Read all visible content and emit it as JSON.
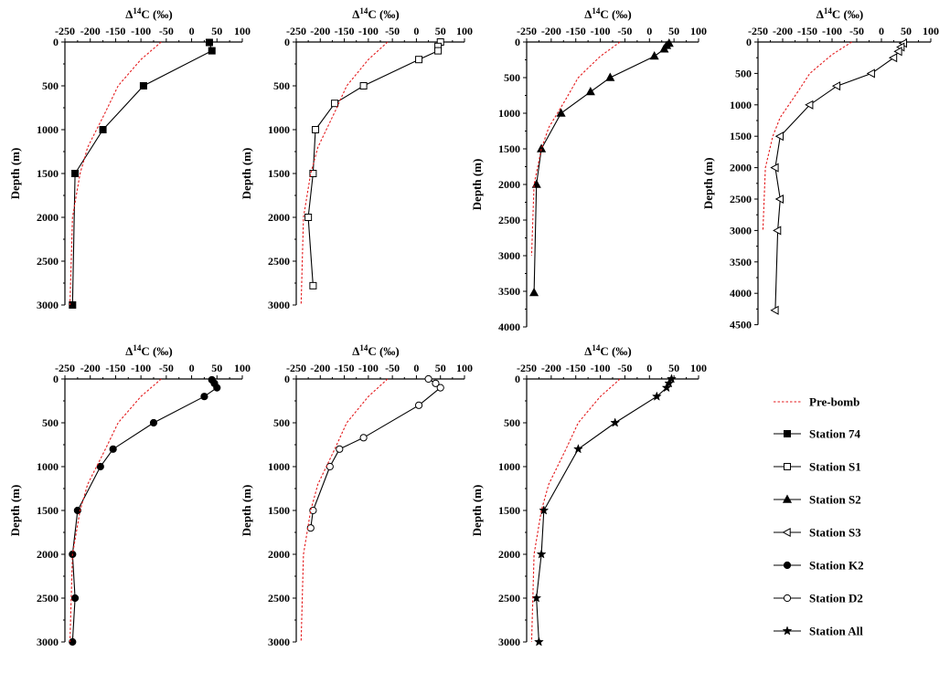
{
  "figure": {
    "legend": {
      "prebomb": "Pre-bomb",
      "items": [
        {
          "key": "74",
          "label": "Station 74",
          "marker": "square-filled"
        },
        {
          "key": "S1",
          "label": "Station S1",
          "marker": "square-open"
        },
        {
          "key": "S2",
          "label": "Station S2",
          "marker": "triangle-up-filled"
        },
        {
          "key": "S3",
          "label": "Station S3",
          "marker": "triangle-left-open"
        },
        {
          "key": "K2",
          "label": "Station K2",
          "marker": "circle-filled"
        },
        {
          "key": "D2",
          "label": "Station D2",
          "marker": "circle-open"
        },
        {
          "key": "All",
          "label": "Station All",
          "marker": "star-filled"
        }
      ]
    },
    "colors": {
      "prebomb": "#e41a1c",
      "data": "#000000"
    }
  },
  "chart_data": [
    {
      "type": "line",
      "station": "Station 74",
      "marker": "square-filled",
      "xlabel": "Δ14C (‰)",
      "ylabel": "Depth (m)",
      "xlim": [
        -250,
        100
      ],
      "ylim": [
        0,
        3000
      ],
      "xticks": [
        "-250",
        "-200",
        "-150",
        "-100",
        "-50",
        "0",
        "50",
        "100"
      ],
      "yticks": [
        "0",
        "500",
        "1000",
        "1500",
        "2000",
        "2500",
        "3000"
      ],
      "series": [
        {
          "name": "Station 74",
          "points": [
            [
              35,
              5
            ],
            [
              40,
              100
            ],
            [
              -95,
              500
            ],
            [
              -175,
              1000
            ],
            [
              -230,
              1500
            ],
            [
              -235,
              3000
            ]
          ]
        },
        {
          "name": "Pre-bomb",
          "points": [
            [
              -60,
              0
            ],
            [
              -100,
              200
            ],
            [
              -145,
              500
            ],
            [
              -170,
              800
            ],
            [
              -205,
              1200
            ],
            [
              -220,
              1500
            ],
            [
              -235,
              2000
            ],
            [
              -240,
              3000
            ]
          ]
        }
      ]
    },
    {
      "type": "line",
      "station": "Station S1",
      "marker": "square-open",
      "xlabel": "Δ14C (‰)",
      "ylabel": "Depth (m)",
      "xlim": [
        -250,
        100
      ],
      "ylim": [
        0,
        3000
      ],
      "xticks": [
        "-250",
        "-200",
        "-150",
        "-100",
        "-50",
        "0",
        "50",
        "100"
      ],
      "yticks": [
        "0",
        "500",
        "1000",
        "1500",
        "2000",
        "2500",
        "3000"
      ],
      "series": [
        {
          "name": "Station S1",
          "points": [
            [
              50,
              0
            ],
            [
              45,
              50
            ],
            [
              45,
              100
            ],
            [
              5,
              200
            ],
            [
              -110,
              500
            ],
            [
              -170,
              700
            ],
            [
              -210,
              1000
            ],
            [
              -215,
              1500
            ],
            [
              -225,
              2000
            ],
            [
              -215,
              2780
            ]
          ]
        },
        {
          "name": "Pre-bomb",
          "points": [
            [
              -60,
              0
            ],
            [
              -100,
              200
            ],
            [
              -145,
              500
            ],
            [
              -170,
              800
            ],
            [
              -205,
              1200
            ],
            [
              -220,
              1500
            ],
            [
              -235,
              2000
            ],
            [
              -240,
              3000
            ]
          ]
        }
      ]
    },
    {
      "type": "line",
      "station": "Station S2",
      "marker": "triangle-up-filled",
      "xlabel": "Δ14C (‰)",
      "ylabel": "Depth (m)",
      "xlim": [
        -250,
        100
      ],
      "ylim": [
        0,
        4000
      ],
      "xticks": [
        "-250",
        "-200",
        "-150",
        "-100",
        "-50",
        "0",
        "50",
        "100"
      ],
      "yticks": [
        "0",
        "500",
        "1000",
        "1500",
        "2000",
        "2500",
        "3000",
        "3500",
        "4000"
      ],
      "series": [
        {
          "name": "Station S2",
          "points": [
            [
              40,
              20
            ],
            [
              35,
              50
            ],
            [
              30,
              100
            ],
            [
              10,
              200
            ],
            [
              -80,
              500
            ],
            [
              -120,
              700
            ],
            [
              -180,
              1000
            ],
            [
              -220,
              1500
            ],
            [
              -230,
              2000
            ],
            [
              -235,
              3520
            ]
          ]
        },
        {
          "name": "Pre-bomb",
          "points": [
            [
              -60,
              0
            ],
            [
              -100,
              200
            ],
            [
              -145,
              500
            ],
            [
              -170,
              800
            ],
            [
              -205,
              1200
            ],
            [
              -220,
              1500
            ],
            [
              -235,
              2000
            ],
            [
              -240,
              3000
            ]
          ]
        }
      ]
    },
    {
      "type": "line",
      "station": "Station S3",
      "marker": "triangle-left-open",
      "xlabel": "Δ14C (‰)",
      "ylabel": "Depth (m)",
      "xlim": [
        -250,
        100
      ],
      "ylim": [
        0,
        4500
      ],
      "xticks": [
        "-250",
        "-200",
        "-150",
        "-100",
        "-50",
        "0",
        "50",
        "100"
      ],
      "yticks": [
        "0",
        "500",
        "1000",
        "1500",
        "2000",
        "2500",
        "3000",
        "3500",
        "4000",
        "4500"
      ],
      "series": [
        {
          "name": "Station S3",
          "points": [
            [
              45,
              20
            ],
            [
              40,
              80
            ],
            [
              35,
              150
            ],
            [
              25,
              250
            ],
            [
              -20,
              500
            ],
            [
              -90,
              700
            ],
            [
              -145,
              1000
            ],
            [
              -205,
              1500
            ],
            [
              -215,
              2000
            ],
            [
              -205,
              2500
            ],
            [
              -210,
              3000
            ],
            [
              -215,
              4270
            ]
          ]
        },
        {
          "name": "Pre-bomb",
          "points": [
            [
              -60,
              0
            ],
            [
              -100,
              200
            ],
            [
              -145,
              500
            ],
            [
              -170,
              800
            ],
            [
              -205,
              1200
            ],
            [
              -220,
              1500
            ],
            [
              -235,
              2000
            ],
            [
              -240,
              3000
            ]
          ]
        }
      ]
    },
    {
      "type": "line",
      "station": "Station K2",
      "marker": "circle-filled",
      "xlabel": "Δ14C (‰)",
      "ylabel": "Depth (m)",
      "xlim": [
        -250,
        100
      ],
      "ylim": [
        0,
        3000
      ],
      "xticks": [
        "-250",
        "-200",
        "-150",
        "-100",
        "-50",
        "0",
        "50",
        "100"
      ],
      "yticks": [
        "0",
        "500",
        "1000",
        "1500",
        "2000",
        "2500",
        "3000"
      ],
      "series": [
        {
          "name": "Station K2",
          "points": [
            [
              40,
              10
            ],
            [
              45,
              50
            ],
            [
              50,
              100
            ],
            [
              25,
              200
            ],
            [
              -75,
              500
            ],
            [
              -155,
              800
            ],
            [
              -180,
              1000
            ],
            [
              -225,
              1500
            ],
            [
              -235,
              2000
            ],
            [
              -230,
              2500
            ],
            [
              -235,
              3000
            ]
          ]
        },
        {
          "name": "Pre-bomb",
          "points": [
            [
              -60,
              0
            ],
            [
              -100,
              200
            ],
            [
              -145,
              500
            ],
            [
              -170,
              800
            ],
            [
              -205,
              1200
            ],
            [
              -220,
              1500
            ],
            [
              -235,
              2000
            ],
            [
              -240,
              3000
            ]
          ]
        }
      ]
    },
    {
      "type": "line",
      "station": "Station D2",
      "marker": "circle-open",
      "xlabel": "Δ14C (‰)",
      "ylabel": "Depth (m)",
      "xlim": [
        -250,
        100
      ],
      "ylim": [
        0,
        3000
      ],
      "xticks": [
        "-250",
        "-200",
        "-150",
        "-100",
        "-50",
        "0",
        "50",
        "100"
      ],
      "yticks": [
        "0",
        "500",
        "1000",
        "1500",
        "2000",
        "2500",
        "3000"
      ],
      "series": [
        {
          "name": "Station D2",
          "points": [
            [
              25,
              0
            ],
            [
              40,
              50
            ],
            [
              50,
              100
            ],
            [
              5,
              300
            ],
            [
              -110,
              670
            ],
            [
              -160,
              800
            ],
            [
              -180,
              1000
            ],
            [
              -215,
              1500
            ],
            [
              -220,
              1700
            ]
          ]
        },
        {
          "name": "Pre-bomb",
          "points": [
            [
              -60,
              0
            ],
            [
              -100,
              200
            ],
            [
              -145,
              500
            ],
            [
              -170,
              800
            ],
            [
              -205,
              1200
            ],
            [
              -220,
              1500
            ],
            [
              -235,
              2000
            ],
            [
              -240,
              3000
            ]
          ]
        }
      ]
    },
    {
      "type": "line",
      "station": "Station All",
      "marker": "star-filled",
      "xlabel": "Δ14C (‰)",
      "ylabel": "Depth (m)",
      "xlim": [
        -250,
        100
      ],
      "ylim": [
        0,
        3000
      ],
      "xticks": [
        "-250",
        "-200",
        "-150",
        "-100",
        "-50",
        "0",
        "50",
        "100"
      ],
      "yticks": [
        "0",
        "500",
        "1000",
        "1500",
        "2000",
        "2500",
        "3000"
      ],
      "series": [
        {
          "name": "Station All",
          "points": [
            [
              45,
              0
            ],
            [
              40,
              50
            ],
            [
              35,
              100
            ],
            [
              15,
              200
            ],
            [
              -70,
              500
            ],
            [
              -145,
              800
            ],
            [
              -215,
              1500
            ],
            [
              -220,
              2000
            ],
            [
              -230,
              2500
            ],
            [
              -225,
              3000
            ]
          ]
        },
        {
          "name": "Pre-bomb",
          "points": [
            [
              -60,
              0
            ],
            [
              -100,
              200
            ],
            [
              -145,
              500
            ],
            [
              -170,
              800
            ],
            [
              -205,
              1200
            ],
            [
              -220,
              1500
            ],
            [
              -235,
              2000
            ],
            [
              -240,
              3000
            ]
          ]
        }
      ]
    }
  ]
}
